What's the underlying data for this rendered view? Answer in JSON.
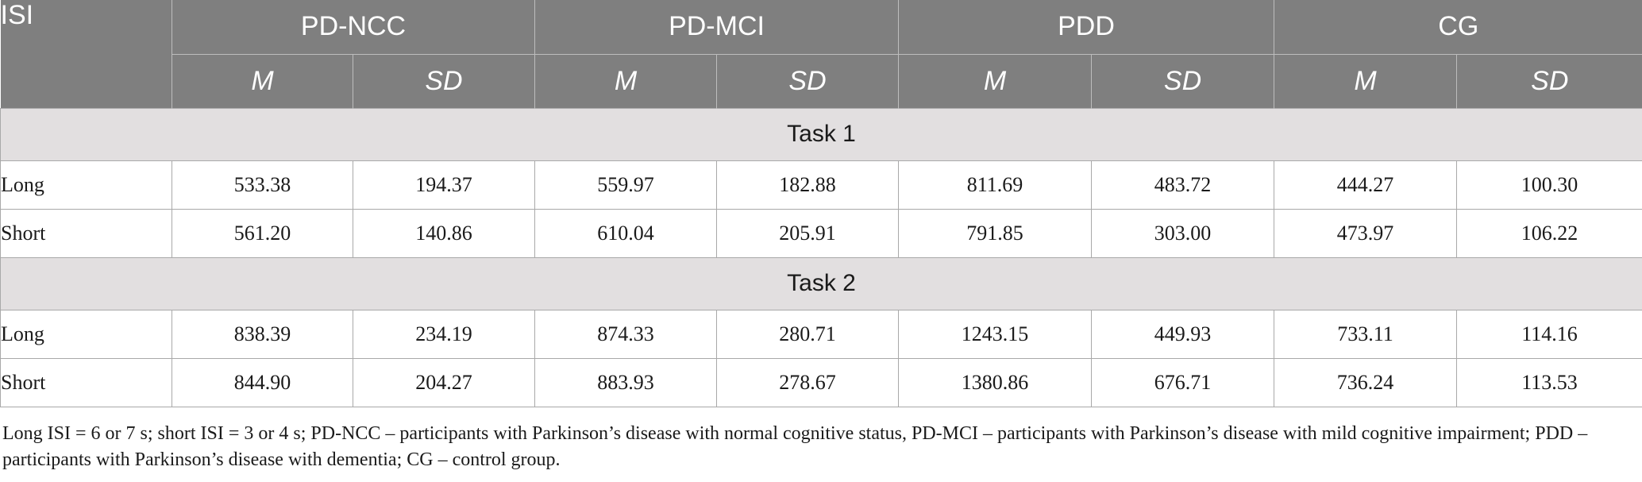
{
  "header": {
    "isi": "ISI",
    "groups": [
      "PD-NCC",
      "PD-MCI",
      "PDD",
      "CG"
    ],
    "sub": [
      "M",
      "SD"
    ]
  },
  "sections": [
    {
      "title": "Task 1",
      "rows": [
        {
          "label": "Long",
          "values": [
            "533.38",
            "194.37",
            "559.97",
            "182.88",
            "811.69",
            "483.72",
            "444.27",
            "100.30"
          ]
        },
        {
          "label": "Short",
          "values": [
            "561.20",
            "140.86",
            "610.04",
            "205.91",
            "791.85",
            "303.00",
            "473.97",
            "106.22"
          ]
        }
      ]
    },
    {
      "title": "Task 2",
      "rows": [
        {
          "label": "Long",
          "values": [
            "838.39",
            "234.19",
            "874.33",
            "280.71",
            "1243.15",
            "449.93",
            "733.11",
            "114.16"
          ]
        },
        {
          "label": "Short",
          "values": [
            "844.90",
            "204.27",
            "883.93",
            "278.67",
            "1380.86",
            "676.71",
            "736.24",
            "113.53"
          ]
        }
      ]
    }
  ],
  "footnote": "Long ISI = 6 or 7 s; short ISI = 3 or 4 s; PD-NCC – participants with Parkinson’s disease with normal cognitive status, PD-MCI – participants with Parkinson’s disease with mild cognitive impairment; PDD – participants with Parkinson’s disease with dementia; CG – control group."
}
